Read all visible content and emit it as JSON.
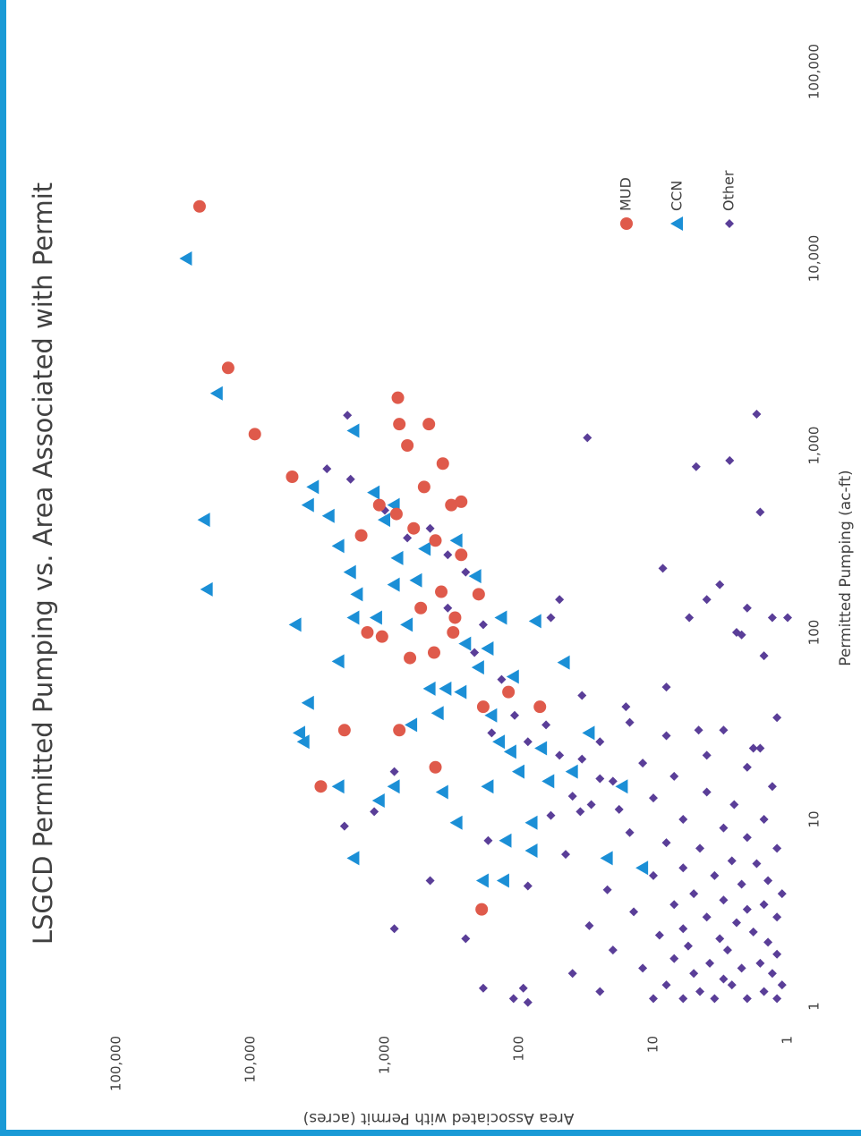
{
  "chart_data": {
    "type": "scatter",
    "title": "LSGCD Permitted Pumping vs. Area Associated with Permit",
    "xlabel": "Permitted Pumping (ac-ft)",
    "ylabel": "Area Associated with Permit (acres)",
    "xscale": "log",
    "yscale": "log",
    "xlim": [
      1,
      100000
    ],
    "ylim": [
      1,
      100000
    ],
    "xticks": [
      1,
      10,
      100,
      {
        "value": 1000,
        "label": "1,000"
      },
      {
        "value": 10000,
        "label": "10,000"
      },
      {
        "value": 100000,
        "label": "100,000"
      }
    ],
    "yticks": [
      1,
      10,
      100,
      {
        "value": 1000,
        "label": "1,000"
      },
      {
        "value": 10000,
        "label": "10,000"
      },
      {
        "value": 100000,
        "label": "100,000"
      }
    ],
    "grid": false,
    "legend": "right",
    "series": [
      {
        "name": "MUD",
        "color": "#df5a4b",
        "marker": "circle",
        "x": [
          19000,
          2600,
          1150,
          680,
          1800,
          1300,
          1300,
          1000,
          800,
          30,
          15,
          30,
          19,
          3.3,
          40,
          40,
          48,
          120,
          160,
          165,
          100,
          95,
          73,
          78,
          135,
          260,
          310,
          360,
          430,
          480,
          600,
          480,
          500,
          330,
          100
        ],
        "y": [
          24000,
          14700,
          9300,
          4900,
          800,
          780,
          470,
          680,
          370,
          2000,
          3000,
          780,
          420,
          190,
          70,
          185,
          120,
          300,
          200,
          380,
          1350,
          1050,
          650,
          430,
          540,
          270,
          420,
          610,
          820,
          1100,
          510,
          320,
          270,
          1500,
          310
        ]
      },
      {
        "name": "CCN",
        "color": "#1b8fd6",
        "marker": "triangle",
        "x": [
          10000,
          1900,
          400,
          170,
          110,
          600,
          480,
          420,
          290,
          210,
          1200,
          560,
          480,
          42,
          29,
          26,
          70,
          15,
          6.2,
          12.6,
          15,
          120,
          160,
          120,
          250,
          190,
          180,
          110,
          32,
          50,
          37,
          14,
          9.6,
          48,
          65,
          4.7,
          4.7,
          7.7,
          9.6,
          6.8,
          310,
          200,
          120,
          115,
          69,
          87,
          82,
          58,
          36,
          23,
          18,
          24,
          16,
          18,
          29,
          6.2,
          5.5,
          15,
          15,
          26,
          280,
          400,
          50
        ],
        "y": [
          30000,
          17700,
          22000,
          21000,
          4600,
          3400,
          3700,
          2600,
          2200,
          1800,
          1700,
          1200,
          850,
          3700,
          4300,
          4000,
          2200,
          2200,
          1700,
          1100,
          850,
          1700,
          1600,
          1150,
          800,
          580,
          850,
          680,
          630,
          460,
          400,
          370,
          290,
          270,
          200,
          185,
          130,
          125,
          80,
          80,
          290,
          210,
          135,
          75,
          46,
          250,
          170,
          110,
          160,
          115,
          100,
          68,
          60,
          40,
          30,
          22,
          12,
          17,
          170,
          140,
          500,
          1000,
          350
        ]
      },
      {
        "name": "Other",
        "color": "#5a3e98",
        "marker": "diamond",
        "x": [
          1470,
          1100,
          830,
          770,
          440,
          220,
          180,
          150,
          150,
          120,
          135,
          120,
          120,
          100,
          97,
          75,
          120,
          51,
          46,
          40,
          30,
          24,
          750,
          1450,
          660,
          18,
          11,
          9.2,
          4.7,
          2.6,
          2.3,
          1.25,
          1.1,
          1.25,
          1.05,
          7.7,
          4.4,
          450,
          320,
          360,
          260,
          210,
          135,
          110,
          78,
          56,
          29,
          36,
          26,
          32,
          22,
          21,
          16.5,
          13.3,
          12,
          11.3,
          10.5,
          1.1,
          1.1,
          1.1,
          1.1,
          1.1,
          1.2,
          1.2,
          1.2,
          1.3,
          1.3,
          1.3,
          1.4,
          1.5,
          1.5,
          1.5,
          1.6,
          1.6,
          1.7,
          1.7,
          1.8,
          1.9,
          2,
          2,
          2.1,
          2.2,
          2.3,
          2.4,
          2.5,
          2.6,
          2.7,
          2.8,
          3,
          3,
          3.2,
          3.3,
          3.5,
          3.5,
          3.7,
          4,
          4,
          4.2,
          4.5,
          4.7,
          5,
          5,
          5.5,
          5.8,
          6,
          6.5,
          7,
          7,
          7.5,
          8,
          8.5,
          9,
          10,
          10,
          11,
          12,
          13,
          14,
          15,
          16,
          17,
          19,
          20,
          22,
          24,
          26,
          28,
          30,
          33,
          35
        ],
        "y": [
          1.7,
          31,
          2.7,
          4.8,
          1.6,
          8.5,
          3.2,
          4,
          50,
          5.4,
          2,
          1.3,
          1,
          2.4,
          2.2,
          1.5,
          58,
          8,
          34,
          16,
          4.6,
          1.8,
          2700,
          1900,
          1800,
          850,
          1200,
          2000,
          460,
          850,
          250,
          185,
          110,
          93,
          86,
          170,
          86,
          1000,
          680,
          460,
          340,
          250,
          340,
          185,
          215,
          135,
          160,
          108,
          86,
          63,
          50,
          34,
          25,
          40,
          29,
          18,
          58,
          1.2,
          2,
          3.5,
          6,
          10,
          1.5,
          4.5,
          25,
          1.1,
          2.6,
          8,
          3,
          1.3,
          5,
          40,
          2.2,
          12,
          1.6,
          3.8,
          7,
          1.2,
          2.8,
          20,
          5.5,
          1.4,
          3.2,
          9,
          1.8,
          6,
          30,
          2.4,
          1.2,
          4,
          14,
          2,
          1.5,
          7,
          3,
          1.1,
          5,
          22,
          2.2,
          1.4,
          3.5,
          10,
          6,
          1.7,
          2.6,
          45,
          4.5,
          1.2,
          8,
          2,
          15,
          3,
          1.5,
          6,
          35,
          2.5,
          10,
          4,
          1.3,
          20,
          7,
          2,
          12,
          4,
          1.6,
          25,
          8,
          3,
          15,
          1.2
        ]
      }
    ]
  }
}
